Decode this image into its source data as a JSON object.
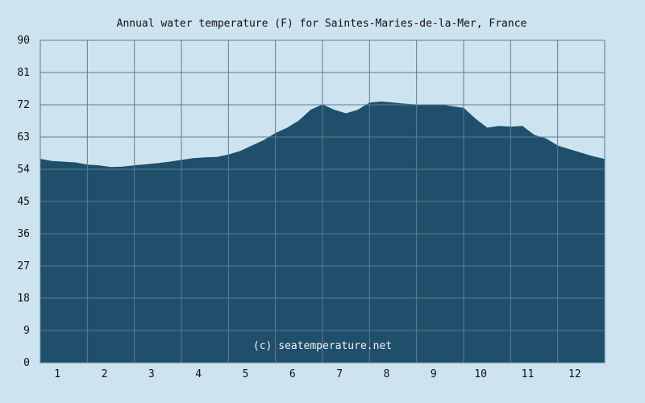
{
  "chart_data": {
    "type": "area",
    "title": "Annual water temperature (F) for Saintes-Maries-de-la-Mer, France",
    "xlabel": "",
    "ylabel": "",
    "categories": [
      "1",
      "2",
      "3",
      "4",
      "5",
      "6",
      "7",
      "8",
      "9",
      "10",
      "11",
      "12"
    ],
    "xlim": [
      0.5,
      12.5
    ],
    "ylim": [
      0,
      90
    ],
    "y_ticks": [
      "0",
      "9",
      "18",
      "27",
      "36",
      "45",
      "54",
      "63",
      "72",
      "81",
      "90"
    ],
    "grid": true,
    "legend": "none",
    "annotation": "(c) seatemperature.net",
    "colors": {
      "background": "#cde3ef",
      "fill": "#1f4f6b",
      "grid": "#5d7e92"
    },
    "series": [
      {
        "x": [
          0.5,
          0.75,
          1.0,
          1.25,
          1.5,
          1.75,
          2.0,
          2.25,
          2.5,
          2.75,
          3.0,
          3.25,
          3.5,
          3.75,
          4.0,
          4.25,
          4.5,
          4.75,
          5.0,
          5.25,
          5.5,
          5.75,
          6.0,
          6.25,
          6.5,
          6.75,
          7.0,
          7.25,
          7.5,
          7.75,
          8.0,
          8.25,
          8.5,
          8.75,
          9.0,
          9.25,
          9.5,
          9.75,
          10.0,
          10.25,
          10.5,
          10.75,
          11.0,
          11.25,
          11.5,
          11.75,
          12.0,
          12.25,
          12.5
        ],
        "values": [
          56.8,
          56.2,
          56.0,
          55.8,
          55.2,
          55.0,
          54.5,
          54.6,
          55.0,
          55.3,
          55.6,
          56.0,
          56.5,
          57.0,
          57.2,
          57.3,
          58.0,
          59.0,
          60.5,
          62.0,
          64.0,
          65.5,
          67.5,
          70.5,
          72.0,
          70.5,
          69.5,
          70.5,
          72.5,
          72.8,
          72.5,
          72.2,
          72.0,
          72.0,
          72.0,
          71.5,
          71.0,
          68.0,
          65.5,
          66.0,
          65.8,
          66.0,
          63.5,
          62.5,
          60.5,
          59.5,
          58.5,
          57.5,
          56.8
        ]
      }
    ]
  }
}
